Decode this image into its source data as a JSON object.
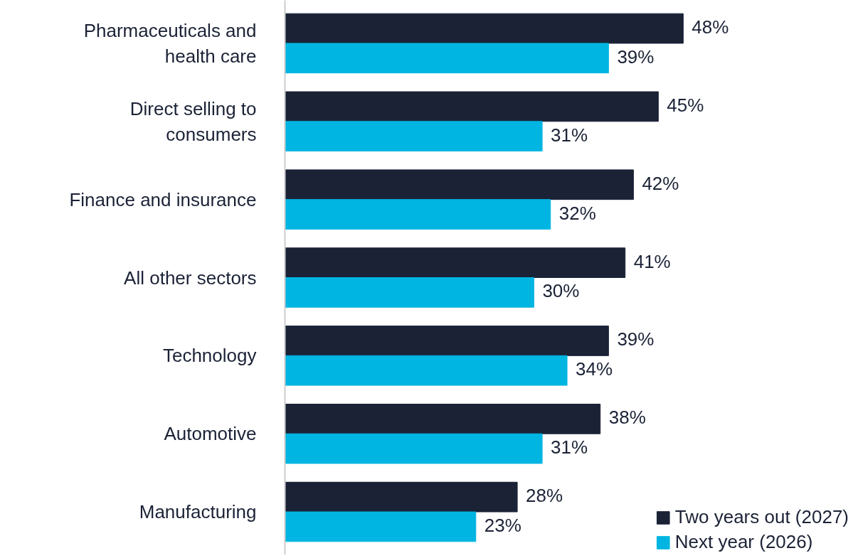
{
  "chart_data": {
    "type": "bar",
    "orientation": "horizontal",
    "categories": [
      "Pharmaceuticals and health care",
      "Direct selling to consumers",
      "Finance and insurance",
      "All other sectors",
      "Technology",
      "Automotive",
      "Manufacturing"
    ],
    "series": [
      {
        "name": "Two years out (2027)",
        "color": "#1b2236",
        "values": [
          48,
          45,
          42,
          41,
          39,
          38,
          28
        ],
        "value_labels": [
          "48%",
          "45%",
          "42%",
          "41%",
          "39%",
          "38%",
          "28%"
        ]
      },
      {
        "name": "Next year (2026)",
        "color": "#00b5e2",
        "values": [
          39,
          31,
          32,
          30,
          34,
          31,
          23
        ],
        "value_labels": [
          "39%",
          "31%",
          "32%",
          "30%",
          "34%",
          "31%",
          "23%"
        ]
      }
    ],
    "legend": "bottom right",
    "grid": false
  }
}
